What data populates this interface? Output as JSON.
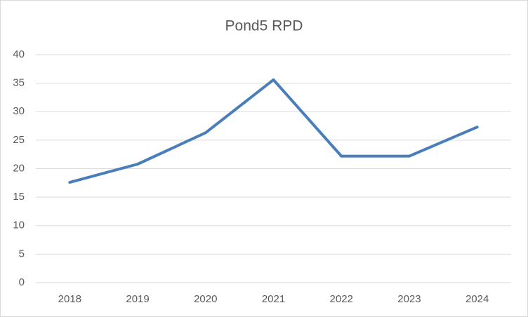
{
  "chart_data": {
    "type": "line",
    "title": "Pond5 RPD",
    "categories": [
      "2018",
      "2019",
      "2020",
      "2021",
      "2022",
      "2023",
      "2024"
    ],
    "series": [
      {
        "name": "Pond5 RPD",
        "color": "#4a7ebb",
        "values": [
          17.6,
          20.8,
          26.3,
          35.6,
          22.2,
          22.2,
          27.3
        ]
      }
    ],
    "ylim": [
      0,
      40
    ],
    "yticks": [
      0,
      5,
      10,
      15,
      20,
      25,
      30,
      35,
      40
    ],
    "grid": true
  }
}
